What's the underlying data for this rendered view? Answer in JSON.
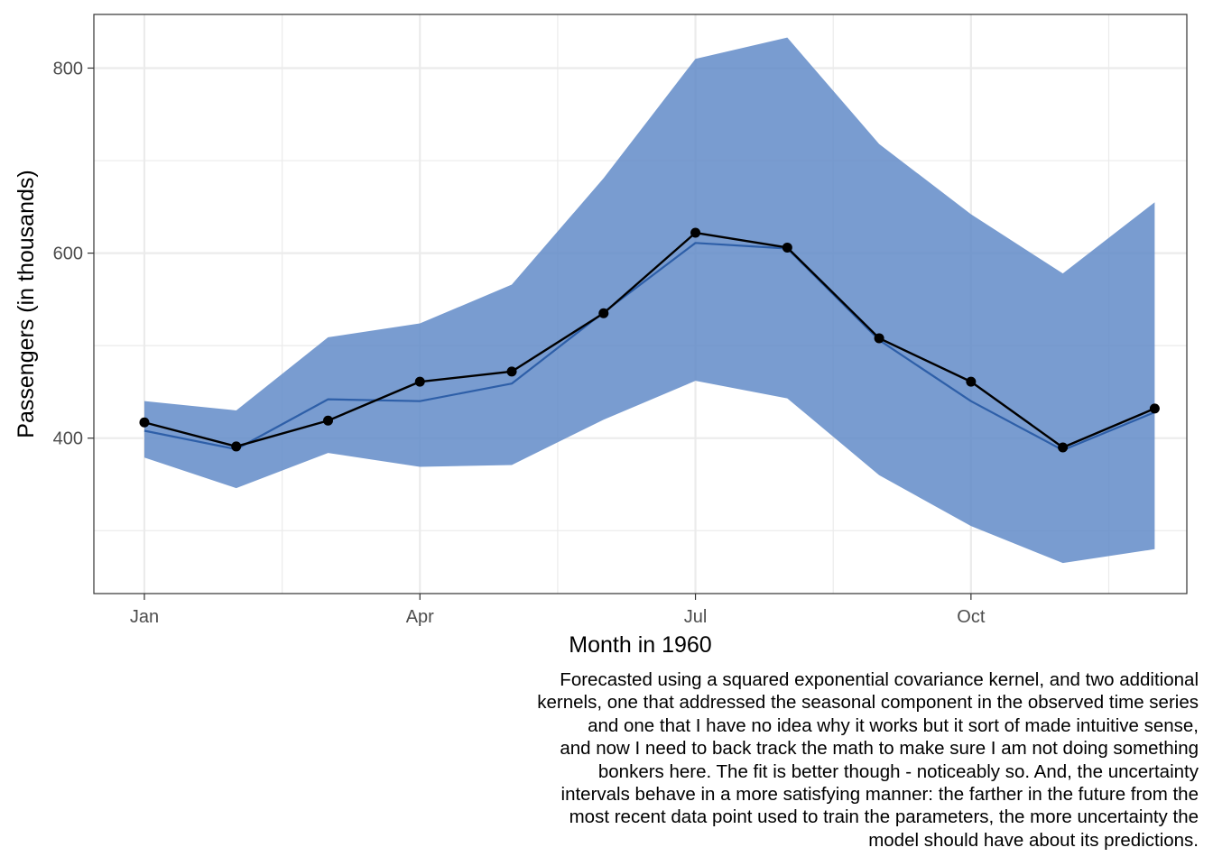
{
  "chart_data": {
    "type": "line",
    "xlabel": "Month in 1960",
    "ylabel": "Passengers (in thousands)",
    "x_ticks": [
      {
        "month": 1,
        "label": "Jan"
      },
      {
        "month": 4,
        "label": "Apr"
      },
      {
        "month": 7,
        "label": "Jul"
      },
      {
        "month": 10,
        "label": "Oct"
      }
    ],
    "y_ticks": [
      400,
      600,
      800
    ],
    "xlim": [
      0.45,
      12.35
    ],
    "ylim": [
      232,
      858
    ],
    "grid": true,
    "months": [
      1,
      2,
      3,
      4,
      5,
      6,
      7,
      8,
      9,
      10,
      11,
      12
    ],
    "series": [
      {
        "kind": "ribbon",
        "color": "#5b86c6",
        "lower": [
          379,
          346,
          384,
          369,
          371,
          420,
          462,
          443,
          360,
          305,
          265,
          280
        ],
        "upper": [
          440,
          430,
          509,
          524,
          566,
          681,
          810,
          833,
          718,
          642,
          578,
          655
        ]
      },
      {
        "kind": "line",
        "color": "#2e5fa8",
        "values": [
          408,
          388,
          442,
          440,
          459,
          536,
          611,
          605,
          506,
          440,
          387,
          428
        ]
      },
      {
        "kind": "line-points",
        "color": "#000000",
        "values": [
          417,
          391,
          419,
          461,
          472,
          535,
          622,
          606,
          508,
          461,
          390,
          432
        ]
      }
    ]
  },
  "caption_lines": [
    "Forecasted using a squared exponential covariance kernel, and two additional",
    "kernels, one that addressed the seasonal component in the observed time series",
    "and one that I have no idea why it works but it sort of made intuitive sense,",
    "and now I need to back track the math to make sure I am not doing something",
    "bonkers here. The fit is better though - noticeably so. And, the uncertainty",
    "intervals behave in a more satisfying manner: the farther in the future from the",
    "most recent data point used to train the parameters, the more uncertainty the",
    "model should have about its predictions."
  ]
}
